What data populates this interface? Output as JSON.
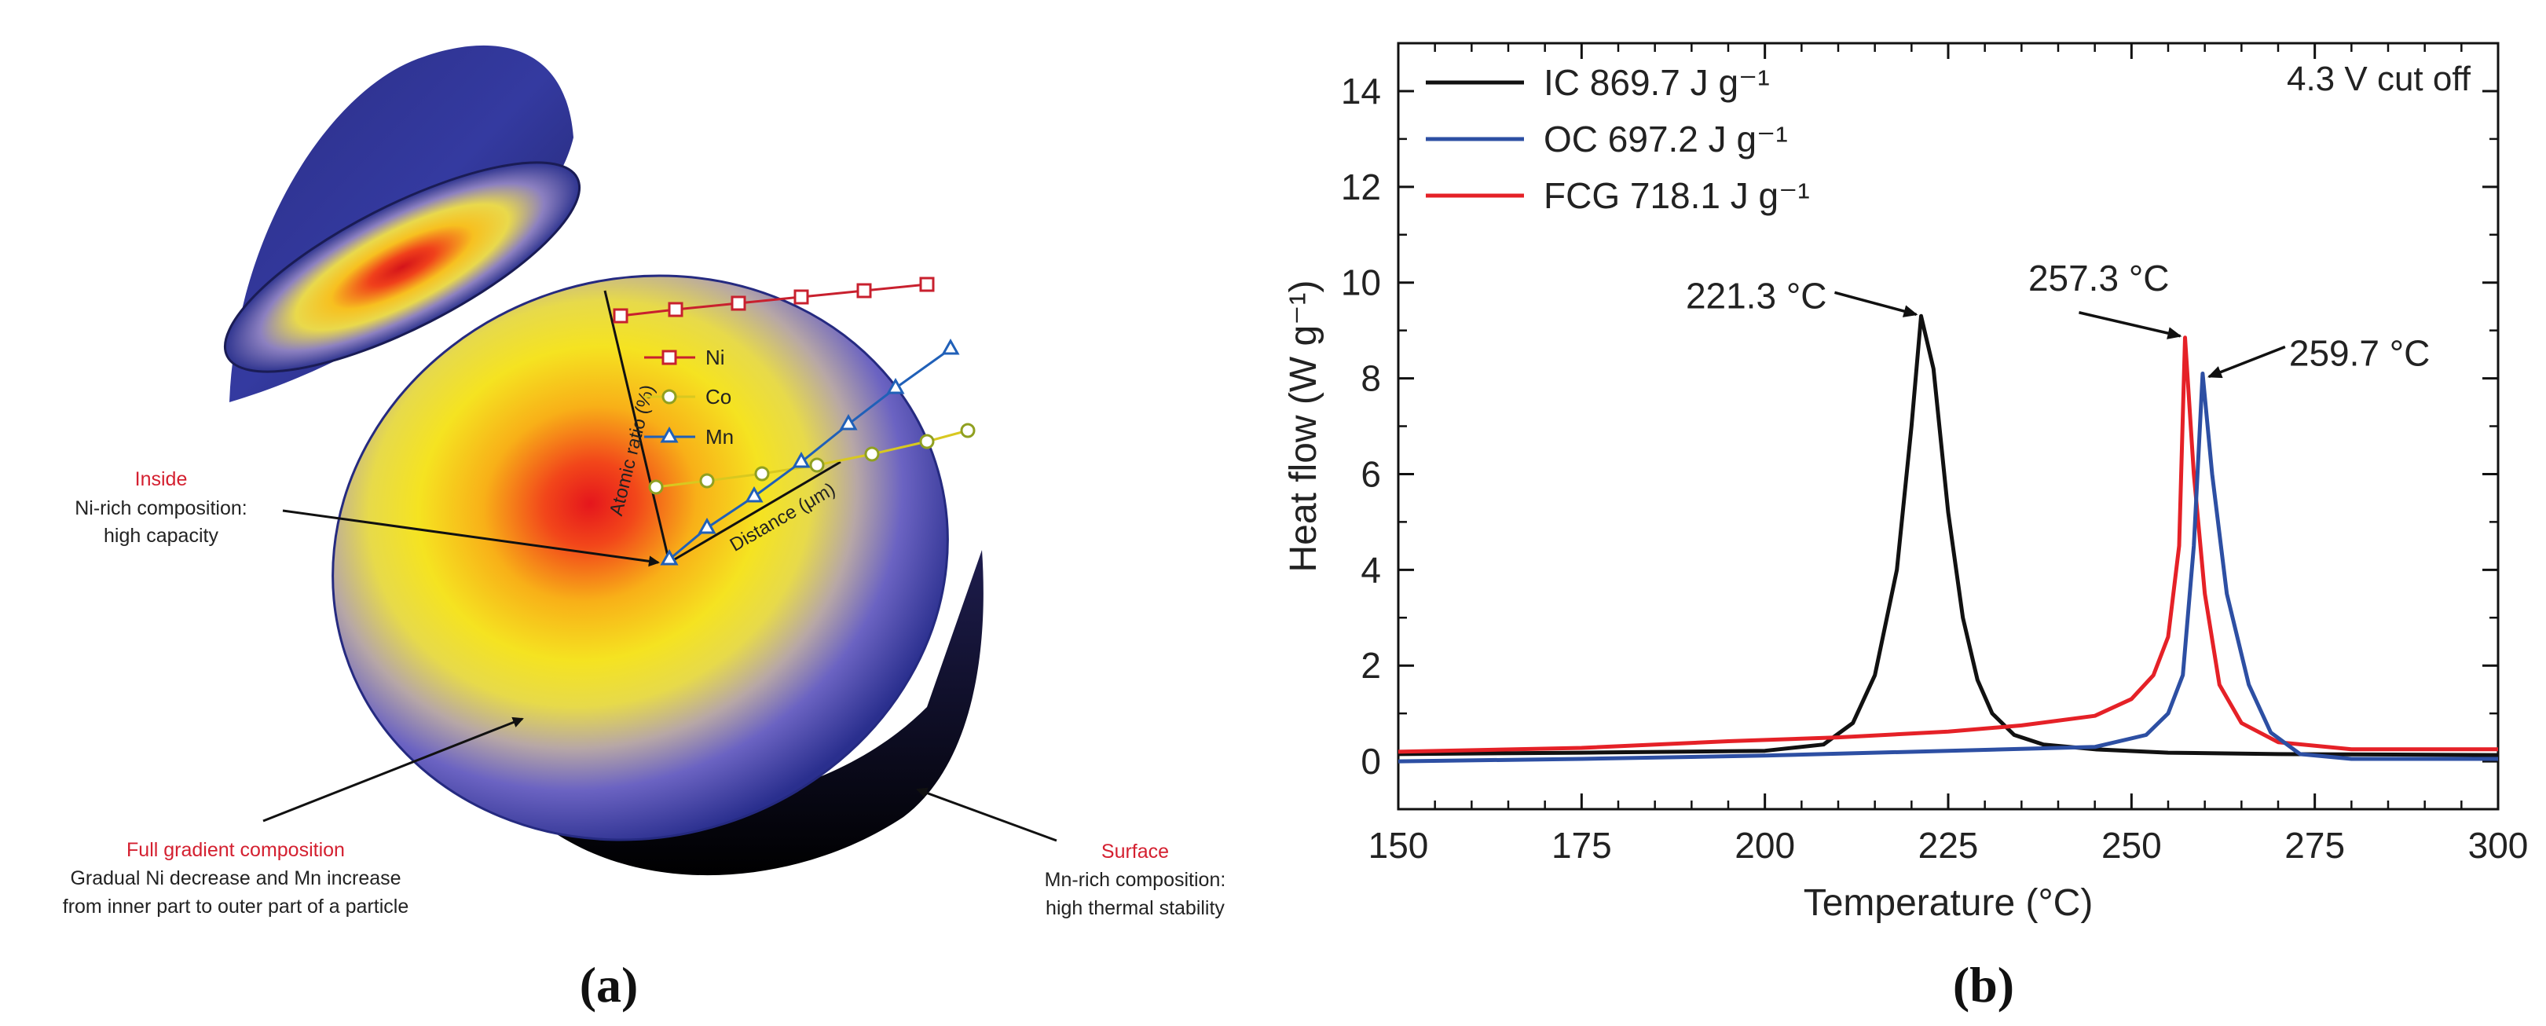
{
  "panel_a": {
    "caption": "(a)",
    "legend": {
      "ni": "Ni",
      "co": "Co",
      "mn": "Mn"
    },
    "axis_y_label": "Atomic ratio (%)",
    "axis_x_label": "Distance (μm)",
    "inside": {
      "title": "Inside",
      "line1": "Ni-rich composition:",
      "line2": "high capacity"
    },
    "gradient": {
      "title": "Full gradient composition",
      "line1": "Gradual Ni decrease and Mn increase",
      "line2": "from inner part to outer part of a particle"
    },
    "surface": {
      "title": "Surface",
      "line1": "Mn-rich composition:",
      "line2": "high thermal stability"
    },
    "colors": {
      "ni": "#c8202e",
      "co": "#d8c820",
      "mn": "#2060b8",
      "annotation_title": "#d42030",
      "sphere_edge": "#2a2f8e"
    }
  },
  "panel_b": {
    "caption": "(b)",
    "note": "4.3 V cut off",
    "peak_labels": [
      "221.3 °C",
      "257.3 °C",
      "259.7 °C"
    ]
  },
  "chart_data": {
    "type": "line",
    "title": "",
    "xlabel": "Temperature (°C)",
    "ylabel": "Heat flow (W g⁻¹)",
    "xlim": [
      150,
      300
    ],
    "ylim": [
      -1,
      15
    ],
    "xticks": [
      150,
      175,
      200,
      225,
      250,
      275,
      300
    ],
    "yticks": [
      0,
      2,
      4,
      6,
      8,
      10,
      12,
      14
    ],
    "legend_position": "top-left",
    "series": [
      {
        "name": "IC 869.7 J g⁻¹",
        "color": "#111111",
        "points": [
          [
            150,
            0.15
          ],
          [
            175,
            0.18
          ],
          [
            200,
            0.22
          ],
          [
            208,
            0.35
          ],
          [
            212,
            0.8
          ],
          [
            215,
            1.8
          ],
          [
            218,
            4.0
          ],
          [
            220,
            7.0
          ],
          [
            221.3,
            9.3
          ],
          [
            223,
            8.2
          ],
          [
            225,
            5.2
          ],
          [
            227,
            3.0
          ],
          [
            229,
            1.7
          ],
          [
            231,
            1.0
          ],
          [
            234,
            0.55
          ],
          [
            238,
            0.35
          ],
          [
            245,
            0.25
          ],
          [
            255,
            0.18
          ],
          [
            270,
            0.15
          ],
          [
            300,
            0.13
          ]
        ]
      },
      {
        "name": "OC 697.2 J g⁻¹",
        "color": "#2d4fa3",
        "points": [
          [
            150,
            0.0
          ],
          [
            175,
            0.05
          ],
          [
            200,
            0.12
          ],
          [
            225,
            0.22
          ],
          [
            245,
            0.3
          ],
          [
            252,
            0.55
          ],
          [
            255,
            1.0
          ],
          [
            257,
            1.8
          ],
          [
            258.5,
            4.5
          ],
          [
            259.7,
            8.1
          ],
          [
            261,
            6.0
          ],
          [
            263,
            3.5
          ],
          [
            266,
            1.6
          ],
          [
            269,
            0.6
          ],
          [
            273,
            0.15
          ],
          [
            280,
            0.05
          ],
          [
            300,
            0.05
          ]
        ]
      },
      {
        "name": "FCG 718.1 J g⁻¹",
        "color": "#e52127",
        "points": [
          [
            150,
            0.2
          ],
          [
            175,
            0.28
          ],
          [
            195,
            0.42
          ],
          [
            210,
            0.5
          ],
          [
            225,
            0.62
          ],
          [
            235,
            0.75
          ],
          [
            245,
            0.95
          ],
          [
            250,
            1.3
          ],
          [
            253,
            1.8
          ],
          [
            255,
            2.6
          ],
          [
            256.5,
            4.5
          ],
          [
            257.3,
            8.85
          ],
          [
            258.5,
            6.0
          ],
          [
            260,
            3.5
          ],
          [
            262,
            1.6
          ],
          [
            265,
            0.8
          ],
          [
            270,
            0.4
          ],
          [
            280,
            0.25
          ],
          [
            300,
            0.25
          ]
        ]
      }
    ],
    "annotations": [
      {
        "text": "221.3 °C",
        "x": 221.3,
        "y": 9.3
      },
      {
        "text": "257.3 °C",
        "x": 257.3,
        "y": 8.85
      },
      {
        "text": "259.7 °C",
        "x": 259.7,
        "y": 8.1
      }
    ]
  }
}
